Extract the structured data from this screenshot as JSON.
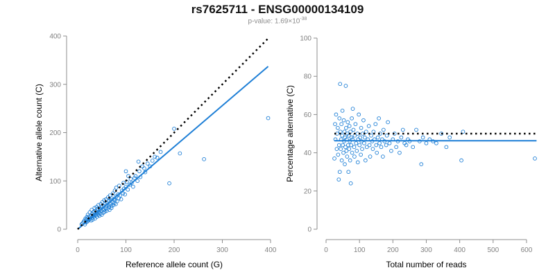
{
  "header": {
    "title": "rs7625711 - ENSG00000134109",
    "pvalue_prefix": "p-value: 1.69×10",
    "pvalue_exponent": "-38"
  },
  "colors": {
    "series": "#1e7fd6",
    "reference_line": "#000000",
    "axis": "#8c8c8c",
    "tick_label": "#808080",
    "axis_label": "#000000"
  },
  "chart_data": [
    {
      "type": "scatter",
      "xlabel": "Reference allele count (G)",
      "ylabel": "Alternative allele count (C)",
      "xlim": [
        0,
        400
      ],
      "ylim": [
        0,
        400
      ],
      "xticks": [
        0,
        100,
        200,
        300,
        400
      ],
      "yticks": [
        0,
        100,
        200,
        300,
        400
      ],
      "grid": false,
      "fit_line": {
        "x": [
          0,
          395
        ],
        "y": [
          0,
          337
        ]
      },
      "reference_line": {
        "x": [
          0,
          395
        ],
        "y": [
          0,
          395
        ]
      },
      "points": [
        [
          10,
          12
        ],
        [
          12,
          15
        ],
        [
          14,
          18
        ],
        [
          15,
          10
        ],
        [
          16,
          22
        ],
        [
          17,
          14
        ],
        [
          18,
          20
        ],
        [
          19,
          25
        ],
        [
          20,
          16
        ],
        [
          21,
          30
        ],
        [
          22,
          18
        ],
        [
          23,
          26
        ],
        [
          24,
          20
        ],
        [
          25,
          35
        ],
        [
          26,
          22
        ],
        [
          27,
          28
        ],
        [
          28,
          18
        ],
        [
          29,
          40
        ],
        [
          30,
          24
        ],
        [
          30,
          32
        ],
        [
          31,
          20
        ],
        [
          32,
          28
        ],
        [
          33,
          36
        ],
        [
          34,
          26
        ],
        [
          35,
          44
        ],
        [
          35,
          30
        ],
        [
          36,
          22
        ],
        [
          37,
          38
        ],
        [
          38,
          30
        ],
        [
          39,
          46
        ],
        [
          40,
          34
        ],
        [
          40,
          26
        ],
        [
          41,
          42
        ],
        [
          42,
          30
        ],
        [
          43,
          50
        ],
        [
          44,
          36
        ],
        [
          45,
          28
        ],
        [
          45,
          44
        ],
        [
          46,
          40
        ],
        [
          47,
          32
        ],
        [
          48,
          52
        ],
        [
          49,
          38
        ],
        [
          50,
          46
        ],
        [
          50,
          30
        ],
        [
          51,
          56
        ],
        [
          52,
          42
        ],
        [
          53,
          34
        ],
        [
          54,
          48
        ],
        [
          55,
          60
        ],
        [
          55,
          40
        ],
        [
          56,
          36
        ],
        [
          57,
          52
        ],
        [
          58,
          44
        ],
        [
          59,
          62
        ],
        [
          60,
          48
        ],
        [
          60,
          38
        ],
        [
          61,
          54
        ],
        [
          62,
          42
        ],
        [
          63,
          66
        ],
        [
          64,
          50
        ],
        [
          65,
          46
        ],
        [
          65,
          58
        ],
        [
          66,
          40
        ],
        [
          67,
          70
        ],
        [
          68,
          52
        ],
        [
          69,
          60
        ],
        [
          70,
          48
        ],
        [
          70,
          44
        ],
        [
          71,
          64
        ],
        [
          72,
          56
        ],
        [
          73,
          74
        ],
        [
          74,
          50
        ],
        [
          75,
          62
        ],
        [
          76,
          54
        ],
        [
          77,
          80
        ],
        [
          78,
          60
        ],
        [
          79,
          52
        ],
        [
          80,
          68
        ],
        [
          80,
          86
        ],
        [
          82,
          58
        ],
        [
          84,
          72
        ],
        [
          85,
          64
        ],
        [
          86,
          90
        ],
        [
          88,
          70
        ],
        [
          90,
          62
        ],
        [
          92,
          80
        ],
        [
          94,
          74
        ],
        [
          95,
          96
        ],
        [
          96,
          84
        ],
        [
          98,
          72
        ],
        [
          100,
          88
        ],
        [
          100,
          120
        ],
        [
          102,
          98
        ],
        [
          104,
          82
        ],
        [
          105,
          110
        ],
        [
          108,
          92
        ],
        [
          110,
          104
        ],
        [
          112,
          96
        ],
        [
          115,
          88
        ],
        [
          118,
          106
        ],
        [
          120,
          110
        ],
        [
          124,
          100
        ],
        [
          126,
          140
        ],
        [
          128,
          120
        ],
        [
          130,
          108
        ],
        [
          134,
          130
        ],
        [
          138,
          126
        ],
        [
          140,
          118
        ],
        [
          145,
          136
        ],
        [
          150,
          130
        ],
        [
          155,
          142
        ],
        [
          160,
          150
        ],
        [
          165,
          148
        ],
        [
          172,
          160
        ],
        [
          190,
          95
        ],
        [
          200,
          208
        ],
        [
          212,
          157
        ],
        [
          262,
          145
        ],
        [
          395,
          230
        ],
        [
          8,
          10
        ]
      ]
    },
    {
      "type": "scatter",
      "xlabel": "Total number of reads",
      "ylabel": "Percentage alternative (C)",
      "xlim": [
        0,
        625
      ],
      "ylim": [
        0,
        100
      ],
      "xticks": [
        0,
        100,
        200,
        300,
        400,
        500,
        600
      ],
      "yticks": [
        0,
        20,
        40,
        60,
        80,
        100
      ],
      "grid": false,
      "fit_line": {
        "x": [
          25,
          630
        ],
        "y": [
          46.3,
          46.3
        ]
      },
      "reference_line": {
        "x": [
          25,
          630
        ],
        "y": [
          50,
          50
        ]
      },
      "points": [
        [
          25,
          37
        ],
        [
          27,
          55
        ],
        [
          28,
          47
        ],
        [
          30,
          60
        ],
        [
          32,
          42
        ],
        [
          33,
          50
        ],
        [
          35,
          53
        ],
        [
          36,
          39
        ],
        [
          38,
          26
        ],
        [
          39,
          44
        ],
        [
          40,
          58
        ],
        [
          41,
          30
        ],
        [
          42,
          76
        ],
        [
          43,
          51
        ],
        [
          44,
          42
        ],
        [
          45,
          47
        ],
        [
          46,
          55
        ],
        [
          47,
          36
        ],
        [
          48,
          49
        ],
        [
          49,
          62
        ],
        [
          50,
          44
        ],
        [
          52,
          40
        ],
        [
          53,
          57
        ],
        [
          54,
          46
        ],
        [
          55,
          51
        ],
        [
          56,
          34
        ],
        [
          57,
          48
        ],
        [
          58,
          43
        ],
        [
          59,
          75
        ],
        [
          60,
          53
        ],
        [
          61,
          41
        ],
        [
          62,
          47
        ],
        [
          63,
          38
        ],
        [
          64,
          50
        ],
        [
          65,
          56
        ],
        [
          66,
          44
        ],
        [
          67,
          30
        ],
        [
          68,
          49
        ],
        [
          69,
          42
        ],
        [
          70,
          54
        ],
        [
          71,
          46
        ],
        [
          72,
          36
        ],
        [
          73,
          51
        ],
        [
          74,
          24
        ],
        [
          75,
          44
        ],
        [
          76,
          48
        ],
        [
          77,
          58
        ],
        [
          78,
          40
        ],
        [
          79,
          47
        ],
        [
          80,
          63
        ],
        [
          82,
          52
        ],
        [
          84,
          43
        ],
        [
          85,
          38
        ],
        [
          86,
          49
        ],
        [
          88,
          55
        ],
        [
          90,
          45
        ],
        [
          92,
          41
        ],
        [
          94,
          50
        ],
        [
          95,
          35
        ],
        [
          96,
          47
        ],
        [
          98,
          60
        ],
        [
          100,
          44
        ],
        [
          102,
          48
        ],
        [
          104,
          39
        ],
        [
          105,
          53
        ],
        [
          106,
          46
        ],
        [
          108,
          42
        ],
        [
          110,
          50
        ],
        [
          112,
          57
        ],
        [
          114,
          45
        ],
        [
          116,
          48
        ],
        [
          118,
          36
        ],
        [
          120,
          51
        ],
        [
          122,
          43
        ],
        [
          125,
          47
        ],
        [
          128,
          54
        ],
        [
          130,
          44
        ],
        [
          132,
          38
        ],
        [
          135,
          49
        ],
        [
          138,
          46
        ],
        [
          140,
          42
        ],
        [
          142,
          51
        ],
        [
          145,
          47
        ],
        [
          148,
          55
        ],
        [
          150,
          44
        ],
        [
          152,
          40
        ],
        [
          155,
          48
        ],
        [
          158,
          58
        ],
        [
          160,
          45
        ],
        [
          162,
          50
        ],
        [
          165,
          43
        ],
        [
          168,
          47
        ],
        [
          170,
          38
        ],
        [
          172,
          52
        ],
        [
          175,
          46
        ],
        [
          180,
          44
        ],
        [
          182,
          49
        ],
        [
          185,
          56
        ],
        [
          190,
          45
        ],
        [
          195,
          41
        ],
        [
          200,
          47
        ],
        [
          205,
          50
        ],
        [
          210,
          43
        ],
        [
          215,
          46
        ],
        [
          220,
          40
        ],
        [
          225,
          48
        ],
        [
          230,
          52
        ],
        [
          235,
          45
        ],
        [
          240,
          44
        ],
        [
          245,
          47
        ],
        [
          250,
          46
        ],
        [
          260,
          43
        ],
        [
          270,
          52
        ],
        [
          280,
          46
        ],
        [
          285,
          34
        ],
        [
          290,
          48
        ],
        [
          300,
          45
        ],
        [
          310,
          47
        ],
        [
          320,
          46
        ],
        [
          330,
          45
        ],
        [
          345,
          50
        ],
        [
          360,
          43
        ],
        [
          370,
          48
        ],
        [
          405,
          36
        ],
        [
          410,
          51
        ],
        [
          625,
          37
        ]
      ]
    }
  ]
}
